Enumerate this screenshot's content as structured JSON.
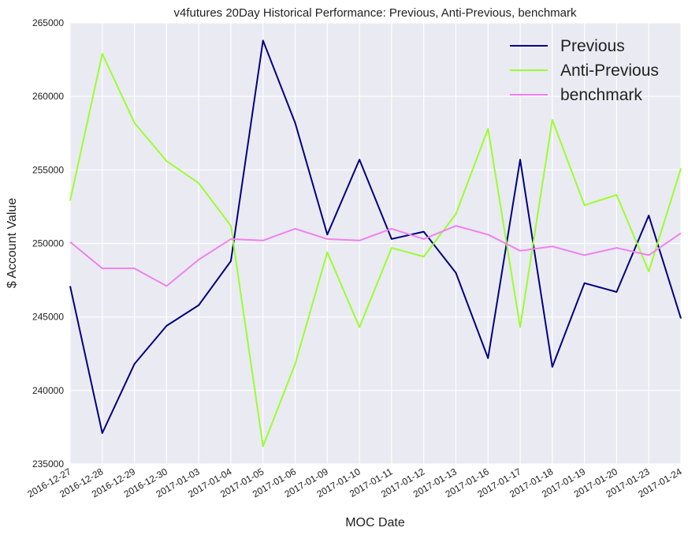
{
  "chart_data": {
    "type": "line",
    "title": "v4futures 20Day Historical Performance: Previous, Anti-Previous, benchmark",
    "xlabel": "MOC Date",
    "ylabel": "$ Account Value",
    "ylim": [
      235000,
      265000
    ],
    "yticks": [
      "235000",
      "240000",
      "245000",
      "250000",
      "255000",
      "260000",
      "265000"
    ],
    "grid": true,
    "legend_position": "top-right",
    "categories": [
      "2016-12-27",
      "2016-12-28",
      "2016-12-29",
      "2016-12-30",
      "2017-01-03",
      "2017-01-04",
      "2017-01-05",
      "2017-01-06",
      "2017-01-09",
      "2017-01-10",
      "2017-01-11",
      "2017-01-12",
      "2017-01-13",
      "2017-01-16",
      "2017-01-17",
      "2017-01-18",
      "2017-01-19",
      "2017-01-20",
      "2017-01-23",
      "2017-01-24"
    ],
    "series": [
      {
        "name": "Previous",
        "color": "#000080",
        "values": [
          247100,
          237100,
          241800,
          244400,
          245800,
          248800,
          263800,
          258200,
          250600,
          255700,
          250300,
          250800,
          248000,
          242200,
          255700,
          241600,
          247300,
          246700,
          251900,
          244900
        ]
      },
      {
        "name": "Anti-Previous",
        "color": "#9afe2e",
        "values": [
          252900,
          262900,
          258200,
          255600,
          254100,
          251200,
          236200,
          241800,
          249400,
          244300,
          249700,
          249100,
          252000,
          257800,
          244300,
          258400,
          252600,
          253300,
          248100,
          255100
        ]
      },
      {
        "name": "benchmark",
        "color": "#ee82ee",
        "values": [
          250100,
          248300,
          248300,
          247100,
          248900,
          250300,
          250200,
          251000,
          250300,
          250200,
          251000,
          250300,
          251200,
          250600,
          249500,
          249800,
          249200,
          249700,
          249200,
          250700
        ]
      }
    ]
  }
}
